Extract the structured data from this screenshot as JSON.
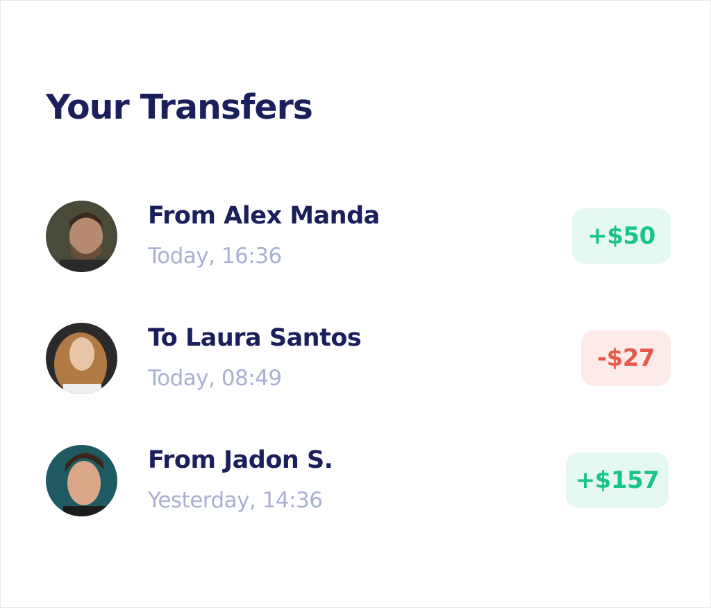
{
  "header": {
    "title": "Your Transfers"
  },
  "colors": {
    "title": "#1b1f5c",
    "positive": "#19c489",
    "negative": "#e55a48",
    "positive_bg": "#e6f8f2",
    "negative_bg": "#fdebe9",
    "muted": "#a9b0d2"
  },
  "transfers": [
    {
      "name": "From Alex Manda",
      "time": "Today, 16:36",
      "amount": "+$50",
      "type": "positive"
    },
    {
      "name": "To Laura Santos",
      "time": "Today, 08:49",
      "amount": "-$27",
      "type": "negative"
    },
    {
      "name": "From Jadon S.",
      "time": "Yesterday, 14:36",
      "amount": "+$157",
      "type": "positive"
    }
  ]
}
